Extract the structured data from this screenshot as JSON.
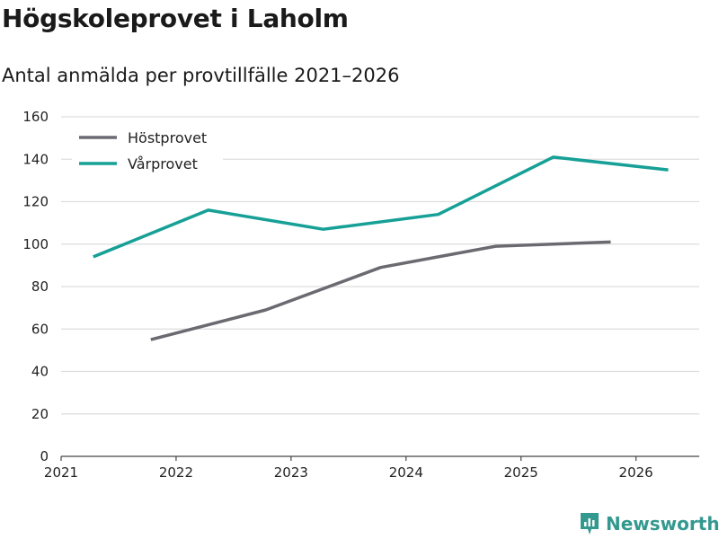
{
  "header": {
    "title": "Högskoleprovet i Laholm",
    "subtitle": "Antal anmälda per provtillfälle 2021–2026"
  },
  "brand": {
    "name": "Newsworthy",
    "color": "#33998f"
  },
  "chart_data": {
    "type": "line",
    "title": "Högskoleprovet i Laholm",
    "subtitle": "Antal anmälda per provtillfälle 2021–2026",
    "xlabel": "",
    "ylabel": "",
    "xlim": [
      2021,
      2026.55
    ],
    "ylim": [
      0,
      160
    ],
    "x_ticks": [
      "2021",
      "2022",
      "2023",
      "2024",
      "2025",
      "2026"
    ],
    "y_ticks": [
      "0",
      "20",
      "40",
      "60",
      "80",
      "100",
      "120",
      "140",
      "160"
    ],
    "grid": "horizontal",
    "legend_position": "top-left",
    "series": [
      {
        "name": "Höstprovet",
        "color": "#6b6a70",
        "x": [
          2021.78,
          2022.78,
          2023.78,
          2024.78,
          2025.78
        ],
        "values": [
          55,
          69,
          89,
          99,
          101
        ]
      },
      {
        "name": "Vårprovet",
        "color": "#16a096",
        "x": [
          2021.28,
          2022.28,
          2023.28,
          2024.28,
          2025.28,
          2026.28
        ],
        "values": [
          94,
          116,
          107,
          114,
          141,
          135
        ]
      }
    ]
  }
}
